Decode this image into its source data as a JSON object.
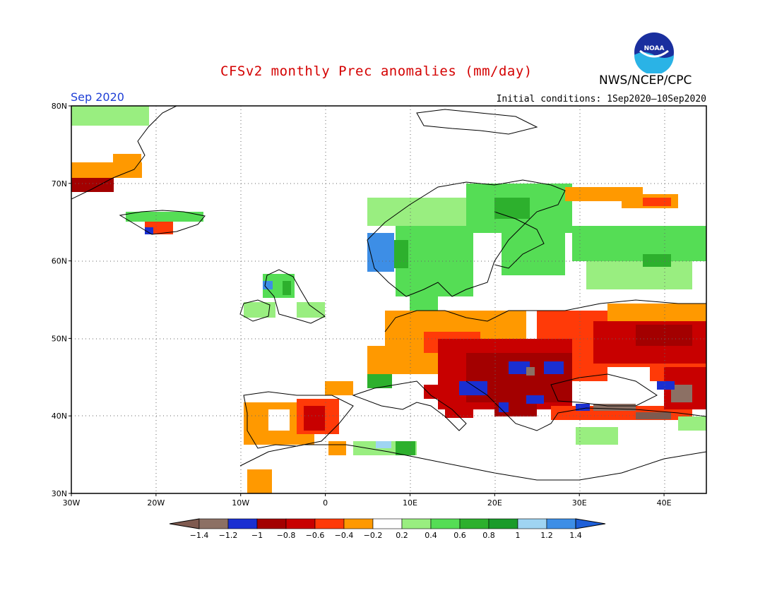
{
  "header": {
    "title": "CFSv2 monthly Prec anomalies (mm/day)",
    "agency": "NWS/NCEP/CPC",
    "month": "Sep 2020",
    "initial_conditions": "Initial conditions: 1Sep2020—10Sep2020",
    "logo_text": "NOAA"
  },
  "map": {
    "lat_labels": [
      "80N",
      "70N",
      "60N",
      "50N",
      "40N",
      "30N"
    ],
    "lon_labels": [
      "30W",
      "20W",
      "10W",
      "0",
      "10E",
      "20E",
      "30E",
      "40E"
    ],
    "lon_range": [
      -30,
      45
    ],
    "lat_range": [
      30,
      80
    ],
    "grid": "dotted"
  },
  "legend": {
    "ticks": [
      "-1.4",
      "-1.2",
      "-1",
      "-0.8",
      "-0.6",
      "-0.4",
      "-0.2",
      "0.2",
      "0.4",
      "0.6",
      "0.8",
      "1",
      "1.2",
      "1.4"
    ],
    "colors": [
      "#7f5a4f",
      "#8c7064",
      "#1a2fd1",
      "#a30000",
      "#c80000",
      "#ff3a08",
      "#ff9900",
      "#ffffff",
      "#99ee80",
      "#55dd55",
      "#2db02d",
      "#1a9b2a",
      "#9fd4f2",
      "#3d8ee6",
      "#1e5fd8"
    ]
  },
  "colors": {
    "title": "#d40000",
    "month": "#1f3fd6",
    "land_outline": "#000000"
  }
}
